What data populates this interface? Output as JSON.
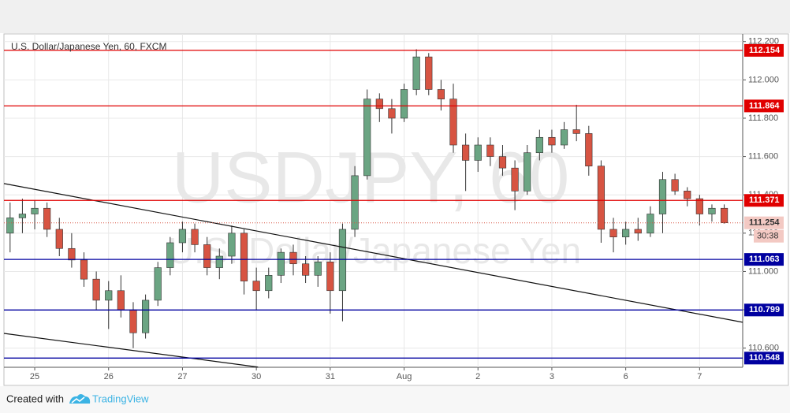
{
  "chart_data": {
    "type": "candlestick",
    "title": "U.S. Dollar/Japanese Yen, 60, FXCM",
    "watermark": "USDJPY, 60",
    "watermark_subtitle": "U.S. Dollar/Japanese Yen",
    "open": [
      111.2,
      111.28,
      111.3,
      111.33,
      111.22,
      111.12,
      111.06,
      110.96,
      110.85,
      110.9,
      110.8,
      110.68,
      110.85,
      111.02,
      111.15,
      111.22,
      111.14,
      111.02,
      111.08,
      111.2,
      110.95,
      110.9,
      110.98,
      111.1,
      111.04,
      110.98,
      111.05,
      110.9,
      111.22,
      111.5,
      111.9,
      111.85,
      111.8,
      111.95,
      112.12,
      111.95,
      111.9,
      111.66,
      111.58,
      111.66,
      111.6,
      111.54,
      111.42,
      111.62,
      111.7,
      111.66,
      111.74,
      111.72,
      111.55,
      111.22,
      111.18,
      111.22,
      111.2,
      111.3,
      111.48,
      111.42,
      111.38,
      111.3,
      111.33
    ],
    "high": [
      111.36,
      111.38,
      111.37,
      111.36,
      111.28,
      111.2,
      111.1,
      111.0,
      110.95,
      110.98,
      110.84,
      110.88,
      111.05,
      111.18,
      111.26,
      111.25,
      111.18,
      111.12,
      111.24,
      111.22,
      111.02,
      111.02,
      111.12,
      111.14,
      111.08,
      111.08,
      111.1,
      111.25,
      111.55,
      111.95,
      111.93,
      111.9,
      111.98,
      112.16,
      112.14,
      112.0,
      111.98,
      111.72,
      111.7,
      111.7,
      111.66,
      111.58,
      111.66,
      111.74,
      111.74,
      111.78,
      111.87,
      111.76,
      111.58,
      111.28,
      111.26,
      111.28,
      111.34,
      111.52,
      111.51,
      111.44,
      111.4,
      111.35,
      111.35
    ],
    "low": [
      111.1,
      111.2,
      111.22,
      111.18,
      111.08,
      111.02,
      110.92,
      110.8,
      110.7,
      110.76,
      110.6,
      110.65,
      110.82,
      110.98,
      111.1,
      111.1,
      110.98,
      110.96,
      111.04,
      110.88,
      110.8,
      110.86,
      110.94,
      110.98,
      110.94,
      110.92,
      110.78,
      110.74,
      111.18,
      111.48,
      111.78,
      111.72,
      111.78,
      111.92,
      111.92,
      111.84,
      111.62,
      111.42,
      111.52,
      111.55,
      111.5,
      111.32,
      111.4,
      111.58,
      111.62,
      111.64,
      111.68,
      111.5,
      111.15,
      111.1,
      111.14,
      111.16,
      111.18,
      111.2,
      111.4,
      111.34,
      111.24,
      111.26,
      111.25
    ],
    "close": [
      111.28,
      111.3,
      111.33,
      111.22,
      111.12,
      111.06,
      110.96,
      110.85,
      110.9,
      110.8,
      110.68,
      110.85,
      111.02,
      111.15,
      111.22,
      111.14,
      111.02,
      111.08,
      111.2,
      110.95,
      110.9,
      110.98,
      111.1,
      111.04,
      110.98,
      111.05,
      110.9,
      111.22,
      111.5,
      111.9,
      111.85,
      111.8,
      111.95,
      112.12,
      111.95,
      111.9,
      111.66,
      111.58,
      111.66,
      111.6,
      111.54,
      111.42,
      111.62,
      111.7,
      111.66,
      111.74,
      111.72,
      111.55,
      111.22,
      111.18,
      111.22,
      111.2,
      111.3,
      111.48,
      111.42,
      111.38,
      111.3,
      111.33,
      111.254
    ],
    "up_color": "#6ba583",
    "down_color": "#d75442",
    "xlim": [
      -0.5,
      59.5
    ],
    "xticks": [
      {
        "value": 2,
        "label": "25"
      },
      {
        "value": 8,
        "label": "26"
      },
      {
        "value": 14,
        "label": "27"
      },
      {
        "value": 20,
        "label": "30"
      },
      {
        "value": 26,
        "label": "31"
      },
      {
        "value": 32,
        "label": "Aug"
      },
      {
        "value": 38,
        "label": "2"
      },
      {
        "value": 44,
        "label": "3"
      },
      {
        "value": 50,
        "label": "6"
      },
      {
        "value": 56,
        "label": "7"
      }
    ],
    "ylim": [
      110.5,
      112.24
    ],
    "yticks": [
      {
        "value": 110.6,
        "label": "110.600"
      },
      {
        "value": 110.8,
        "label": "110.800"
      },
      {
        "value": 111.0,
        "label": "111.000"
      },
      {
        "value": 111.2,
        "label": "111.200"
      },
      {
        "value": 111.4,
        "label": "111.400"
      },
      {
        "value": 111.6,
        "label": "111.600"
      },
      {
        "value": 111.8,
        "label": "111.800"
      },
      {
        "value": 112.0,
        "label": "112.000"
      },
      {
        "value": 112.2,
        "label": "112.200"
      }
    ],
    "grid": true,
    "levels": [
      {
        "value": 112.154,
        "color": "#e00000"
      },
      {
        "value": 111.864,
        "color": "#e00000"
      },
      {
        "value": 111.371,
        "color": "#e00000"
      },
      {
        "value": 111.254,
        "color": "#d75442",
        "dotted": true
      },
      {
        "value": 111.063,
        "color": "#0000a0"
      },
      {
        "value": 110.799,
        "color": "#0000a0"
      },
      {
        "value": 110.548,
        "color": "#0000a0"
      }
    ],
    "countdown": "30:38",
    "trend_lines": [
      {
        "x": [
          -0.5,
          59.5
        ],
        "y": [
          111.459,
          110.735
        ]
      },
      {
        "x": [
          -0.5,
          20.14
        ],
        "y": [
          110.677,
          110.501
        ]
      }
    ]
  },
  "footer": {
    "created_with": "Created with",
    "brand": "TradingView"
  }
}
